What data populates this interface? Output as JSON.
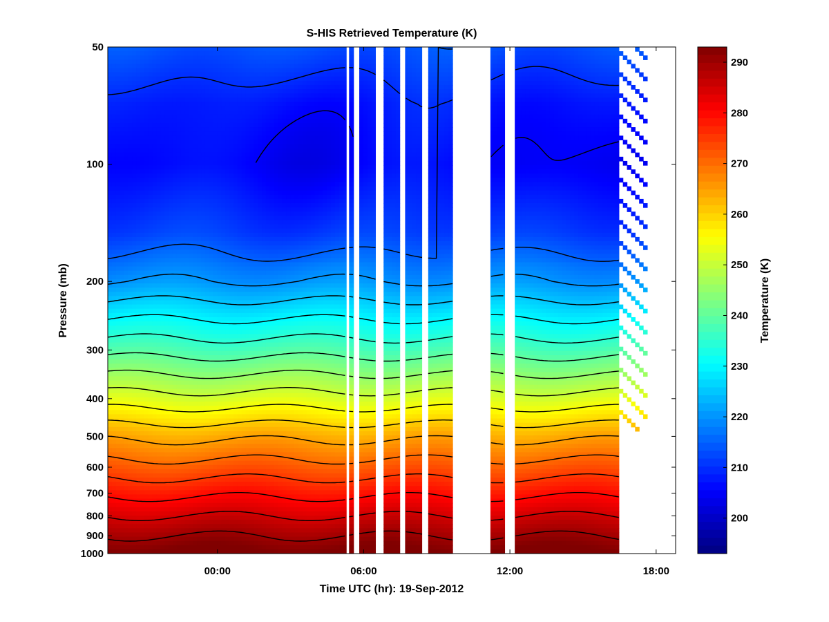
{
  "chart_data": {
    "type": "heatmap",
    "title": "S-HIS Retrieved Temperature (K)",
    "xlabel": "Time UTC (hr): 19-Sep-2012",
    "ylabel": "Pressure (mb)",
    "x_scale": "linear",
    "y_scale": "log",
    "xlim_hours": [
      -4.5,
      18.8
    ],
    "ylim_mb": [
      1000,
      50
    ],
    "x_ticks": [
      {
        "hour": 0,
        "label": "00:00"
      },
      {
        "hour": 6,
        "label": "06:00"
      },
      {
        "hour": 12,
        "label": "12:00"
      },
      {
        "hour": 18,
        "label": "18:00"
      }
    ],
    "y_ticks": [
      {
        "value": 50,
        "label": "50"
      },
      {
        "value": 100,
        "label": "100"
      },
      {
        "value": 200,
        "label": "200"
      },
      {
        "value": 300,
        "label": "300"
      },
      {
        "value": 400,
        "label": "400"
      },
      {
        "value": 500,
        "label": "500"
      },
      {
        "value": 600,
        "label": "600"
      },
      {
        "value": 700,
        "label": "700"
      },
      {
        "value": 800,
        "label": "800"
      },
      {
        "value": 900,
        "label": "900"
      },
      {
        "value": 1000,
        "label": "1000"
      }
    ],
    "colorbar": {
      "label": "Temperature (K)",
      "range": [
        193,
        293
      ],
      "colormap": "jet",
      "ticks": [
        {
          "value": 200,
          "label": "200"
        },
        {
          "value": 210,
          "label": "210"
        },
        {
          "value": 220,
          "label": "220"
        },
        {
          "value": 230,
          "label": "230"
        },
        {
          "value": 240,
          "label": "240"
        },
        {
          "value": 250,
          "label": "250"
        },
        {
          "value": 260,
          "label": "260"
        },
        {
          "value": 270,
          "label": "270"
        },
        {
          "value": 280,
          "label": "280"
        },
        {
          "value": 290,
          "label": "290"
        }
      ]
    },
    "data_coverage_hours": [
      -4.5,
      16.5
    ],
    "data_gaps_hours": [
      [
        5.3,
        5.4
      ],
      [
        5.6,
        5.8
      ],
      [
        6.5,
        6.8
      ],
      [
        7.5,
        7.7
      ],
      [
        8.4,
        8.6
      ],
      [
        9.7,
        10.3
      ],
      [
        10.3,
        11.2
      ],
      [
        11.8,
        12.2
      ]
    ],
    "sparse_data_hours": [
      [
        16.5,
        17.6
      ]
    ],
    "temperature_profile": [
      {
        "pressure_mb": 50,
        "temp_k": 214
      },
      {
        "pressure_mb": 70,
        "temp_k": 209
      },
      {
        "pressure_mb": 100,
        "temp_k": 207
      },
      {
        "pressure_mb": 150,
        "temp_k": 212
      },
      {
        "pressure_mb": 200,
        "temp_k": 220
      },
      {
        "pressure_mb": 250,
        "temp_k": 230
      },
      {
        "pressure_mb": 300,
        "temp_k": 238
      },
      {
        "pressure_mb": 400,
        "temp_k": 252
      },
      {
        "pressure_mb": 500,
        "temp_k": 264
      },
      {
        "pressure_mb": 600,
        "temp_k": 272
      },
      {
        "pressure_mb": 700,
        "temp_k": 279
      },
      {
        "pressure_mb": 800,
        "temp_k": 285
      },
      {
        "pressure_mb": 900,
        "temp_k": 290
      },
      {
        "pressure_mb": 1000,
        "temp_k": 294
      }
    ],
    "contour_interval_k": 5
  }
}
